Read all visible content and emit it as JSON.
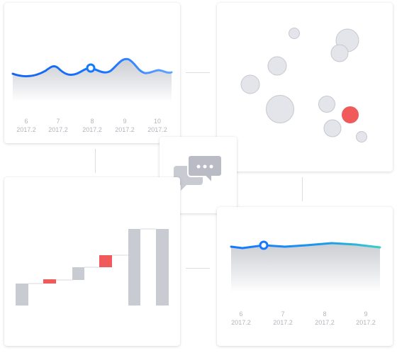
{
  "charts": {
    "line_top_left": {
      "type": "area",
      "x_ticks": [
        {
          "day": "6",
          "month": "2017.2"
        },
        {
          "day": "7",
          "month": "2017.2"
        },
        {
          "day": "8",
          "month": "2017.2"
        },
        {
          "day": "9",
          "month": "2017.2"
        },
        {
          "day": "10",
          "month": "2017.2"
        }
      ]
    },
    "line_bottom_right": {
      "type": "area",
      "x_ticks": [
        {
          "day": "6",
          "month": "2017.2"
        },
        {
          "day": "7",
          "month": "2017.2"
        },
        {
          "day": "8",
          "month": "2017.2"
        },
        {
          "day": "9",
          "month": "2017.2"
        }
      ]
    },
    "bubble": {
      "type": "scatter"
    },
    "waterfall": {
      "type": "bar"
    }
  },
  "center_icon": "chat-bubbles-icon",
  "colors": {
    "accent_blue": "#1677ff",
    "accent_teal": "#36cfc9",
    "highlight_red": "#f05a5a",
    "neutral_gray": "#c8cbd2"
  }
}
